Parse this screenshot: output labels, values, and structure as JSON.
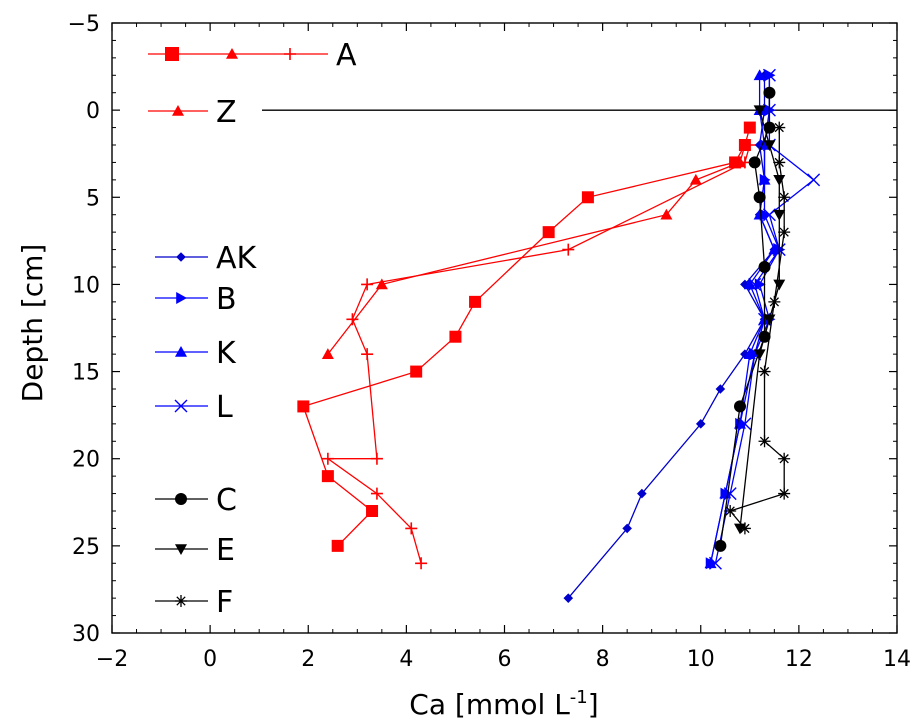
{
  "chart_data": {
    "type": "line",
    "xlabel": "Ca [mmol L",
    "xlabel_sup": "-1",
    "xlabel_end": "]",
    "ylabel": "Depth [cm]",
    "xlim": [
      -2,
      14
    ],
    "ylim": [
      -5,
      30
    ],
    "y_inverted": true,
    "xticks": [
      -2,
      0,
      2,
      4,
      6,
      8,
      10,
      12,
      14
    ],
    "yticks": [
      -5,
      0,
      5,
      10,
      15,
      20,
      25,
      30
    ],
    "xtick_labels": [
      "−2",
      "0",
      "2",
      "4",
      "6",
      "8",
      "10",
      "12",
      "14"
    ],
    "ytick_labels": [
      "−5",
      "0",
      "5",
      "10",
      "15",
      "20",
      "25",
      "30"
    ],
    "grid": false,
    "reference_line": {
      "y": 0
    },
    "legend_entries": [
      {
        "label": "A",
        "markers": [
          "square",
          "triangle",
          "plus"
        ],
        "color": "#ff0000"
      },
      {
        "label": "Z",
        "markers": [
          "triangle"
        ],
        "color": "#ff0000"
      },
      {
        "label": "AK",
        "markers": [
          "diamond"
        ],
        "color": "#0000cc"
      },
      {
        "label": "B",
        "markers": [
          "triangle-right"
        ],
        "color": "#0000ff"
      },
      {
        "label": "K",
        "markers": [
          "triangle"
        ],
        "color": "#0000ff"
      },
      {
        "label": "L",
        "markers": [
          "x"
        ],
        "color": "#0000ff"
      },
      {
        "label": "C",
        "markers": [
          "circle"
        ],
        "color": "#000000"
      },
      {
        "label": "E",
        "markers": [
          "triangle-down"
        ],
        "color": "#000000"
      },
      {
        "label": "F",
        "markers": [
          "asterisk"
        ],
        "color": "#000000"
      }
    ],
    "series": [
      {
        "name": "A",
        "marker": "square",
        "color": "#ff0000",
        "points": [
          [
            11.0,
            1
          ],
          [
            10.9,
            2
          ],
          [
            10.7,
            3
          ],
          [
            7.7,
            5
          ],
          [
            6.9,
            7
          ],
          [
            5.4,
            11
          ],
          [
            5.0,
            13
          ],
          [
            4.2,
            15
          ],
          [
            1.9,
            17
          ],
          [
            2.4,
            21
          ],
          [
            3.3,
            23
          ],
          [
            2.6,
            25
          ]
        ]
      },
      {
        "name": "A",
        "marker": "triangle",
        "color": "#ff0000",
        "points": [
          [
            10.9,
            2
          ],
          [
            10.8,
            3
          ],
          [
            9.9,
            4
          ],
          [
            9.3,
            6
          ],
          [
            3.5,
            10
          ],
          [
            2.4,
            14
          ]
        ]
      },
      {
        "name": "A",
        "marker": "plus",
        "color": "#ff0000",
        "points": [
          [
            11.0,
            2
          ],
          [
            10.9,
            3
          ],
          [
            7.3,
            8
          ],
          [
            3.2,
            10
          ],
          [
            2.9,
            12
          ],
          [
            3.2,
            14
          ],
          [
            3.4,
            20
          ],
          [
            2.4,
            20
          ],
          [
            3.4,
            22
          ],
          [
            4.1,
            24
          ],
          [
            4.3,
            26
          ]
        ]
      },
      {
        "name": "AK",
        "marker": "diamond",
        "color": "#0000cc",
        "points": [
          [
            11.3,
            -2
          ],
          [
            11.3,
            0
          ],
          [
            11.2,
            2
          ],
          [
            11.3,
            4
          ],
          [
            11.2,
            6
          ],
          [
            11.5,
            8
          ],
          [
            10.9,
            10
          ],
          [
            11.3,
            12
          ],
          [
            10.9,
            14
          ],
          [
            10.4,
            16
          ],
          [
            10.0,
            18
          ],
          [
            8.8,
            22
          ],
          [
            8.5,
            24
          ],
          [
            7.3,
            28
          ]
        ]
      },
      {
        "name": "B",
        "marker": "triangle-right",
        "color": "#0000ff",
        "points": [
          [
            11.4,
            -2
          ],
          [
            11.4,
            0
          ],
          [
            11.3,
            2
          ],
          [
            11.3,
            4
          ],
          [
            11.3,
            6
          ],
          [
            11.6,
            8
          ],
          [
            11.2,
            10
          ],
          [
            11.4,
            12
          ],
          [
            11.1,
            14
          ],
          [
            10.8,
            18
          ],
          [
            10.5,
            22
          ],
          [
            10.2,
            26
          ]
        ]
      },
      {
        "name": "K",
        "marker": "triangle",
        "color": "#0000ff",
        "points": [
          [
            11.2,
            -2
          ],
          [
            11.2,
            0
          ],
          [
            11.3,
            2
          ],
          [
            11.3,
            4
          ],
          [
            11.2,
            6
          ],
          [
            11.5,
            8
          ],
          [
            11.0,
            10
          ],
          [
            11.3,
            12
          ],
          [
            11.0,
            14
          ],
          [
            10.8,
            18
          ],
          [
            10.5,
            22
          ],
          [
            10.2,
            26
          ]
        ]
      },
      {
        "name": "L",
        "marker": "x",
        "color": "#0000ff",
        "points": [
          [
            11.4,
            -2
          ],
          [
            11.4,
            0
          ],
          [
            11.4,
            2
          ],
          [
            12.3,
            4
          ],
          [
            11.4,
            6
          ],
          [
            11.6,
            8
          ],
          [
            11.1,
            10
          ],
          [
            11.3,
            12
          ],
          [
            11.1,
            14
          ],
          [
            10.9,
            18
          ],
          [
            10.6,
            22
          ],
          [
            10.3,
            26
          ]
        ]
      },
      {
        "name": "C",
        "marker": "circle",
        "color": "#000000",
        "points": [
          [
            11.4,
            -1
          ],
          [
            11.4,
            1
          ],
          [
            11.1,
            3
          ],
          [
            11.2,
            5
          ],
          [
            11.3,
            9
          ],
          [
            11.3,
            13
          ],
          [
            10.8,
            17
          ],
          [
            10.4,
            25
          ]
        ]
      },
      {
        "name": "E",
        "marker": "triangle-down",
        "color": "#000000",
        "points": [
          [
            11.2,
            0
          ],
          [
            11.4,
            2
          ],
          [
            11.6,
            4
          ],
          [
            11.6,
            6
          ],
          [
            11.6,
            10
          ],
          [
            11.4,
            12
          ],
          [
            11.2,
            14
          ],
          [
            10.8,
            24
          ]
        ]
      },
      {
        "name": "F",
        "marker": "asterisk",
        "color": "#000000",
        "points": [
          [
            11.6,
            1
          ],
          [
            11.6,
            3
          ],
          [
            11.7,
            5
          ],
          [
            11.7,
            7
          ],
          [
            11.5,
            11
          ],
          [
            11.3,
            15
          ],
          [
            11.3,
            19
          ],
          [
            11.7,
            20
          ],
          [
            11.7,
            22
          ],
          [
            10.6,
            23
          ],
          [
            10.9,
            24
          ]
        ]
      }
    ]
  }
}
